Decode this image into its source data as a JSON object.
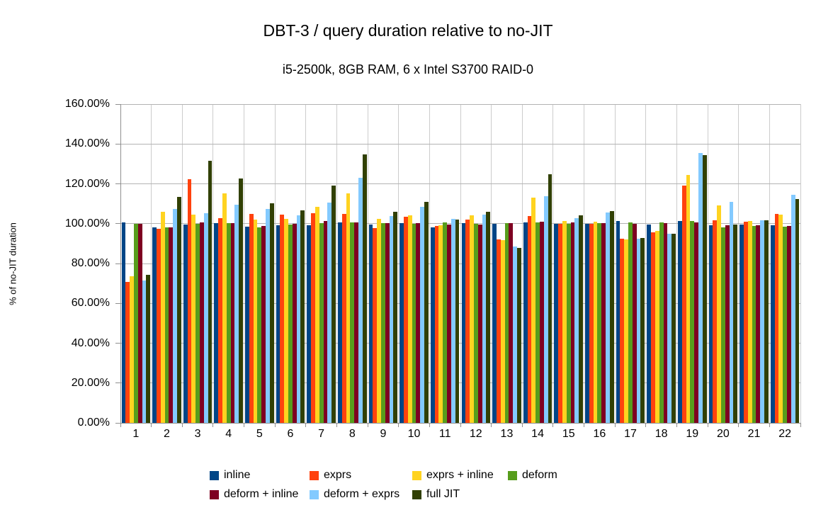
{
  "title": "DBT-3 / query duration relative to no-JIT",
  "subtitle": "i5-2500k, 8GB RAM, 6 x Intel S3700 RAID-0",
  "y_axis": {
    "title": "% of no-JIT duration",
    "tick_labels": [
      "0.00%",
      "20.00%",
      "40.00%",
      "60.00%",
      "80.00%",
      "100.00%",
      "120.00%",
      "140.00%",
      "160.00%"
    ]
  },
  "chart_data": {
    "type": "bar",
    "title": "DBT-3 / query duration relative to no-JIT",
    "subtitle": "i5-2500k, 8GB RAM, 6 x Intel S3700 RAID-0",
    "xlabel": "",
    "ylabel": "% of no-JIT duration",
    "ylim": [
      0,
      160
    ],
    "y_tick_step": 20,
    "unit": "%",
    "grid": true,
    "legend_position": "bottom",
    "categories": [
      "1",
      "2",
      "3",
      "4",
      "5",
      "6",
      "7",
      "8",
      "9",
      "10",
      "11",
      "12",
      "13",
      "14",
      "15",
      "16",
      "17",
      "18",
      "19",
      "20",
      "21",
      "22"
    ],
    "series": [
      {
        "name": "inline",
        "color": "#004586",
        "values": [
          100.6,
          98.2,
          99.6,
          100.3,
          98.5,
          99.1,
          99.3,
          100.5,
          99.7,
          100.4,
          98.2,
          100.4,
          99.9,
          100.5,
          100.0,
          99.9,
          101.2,
          99.7,
          101.2,
          99.3,
          99.6,
          99.2
        ]
      },
      {
        "name": "exprs",
        "color": "#FF420E",
        "values": [
          70.6,
          97.3,
          122.4,
          102.8,
          104.9,
          104.5,
          105.2,
          104.8,
          97.8,
          103.6,
          98.7,
          102.0,
          92.0,
          103.7,
          100.0,
          99.9,
          92.3,
          95.7,
          119.2,
          101.6,
          101.1,
          105.0
        ]
      },
      {
        "name": "exprs + inline",
        "color": "#FFD320",
        "values": [
          73.6,
          106.0,
          104.4,
          115.3,
          102.0,
          102.5,
          108.6,
          115.1,
          102.3,
          104.1,
          99.1,
          104.2,
          91.8,
          113.1,
          101.2,
          100.9,
          92.0,
          96.5,
          124.6,
          109.3,
          101.4,
          104.4
        ]
      },
      {
        "name": "deform",
        "color": "#579D1C",
        "values": [
          99.8,
          98.1,
          100.0,
          100.1,
          98.1,
          99.4,
          100.3,
          100.5,
          100.1,
          99.9,
          100.6,
          100.0,
          100.1,
          100.5,
          100.0,
          100.1,
          100.7,
          100.5,
          101.3,
          98.2,
          98.8,
          98.5
        ]
      },
      {
        "name": "deform + inline",
        "color": "#7E0021",
        "values": [
          99.9,
          98.0,
          100.5,
          100.3,
          98.7,
          99.9,
          101.2,
          100.5,
          100.1,
          100.2,
          99.4,
          99.7,
          100.4,
          100.9,
          100.6,
          100.4,
          99.9,
          100.3,
          100.6,
          99.2,
          99.2,
          99.0
        ]
      },
      {
        "name": "deform + exprs",
        "color": "#83CAFF",
        "values": [
          71.5,
          107.4,
          105.2,
          109.5,
          107.3,
          104.2,
          110.7,
          123.0,
          103.9,
          108.3,
          102.5,
          104.4,
          88.7,
          113.9,
          102.9,
          105.6,
          92.3,
          94.9,
          135.4,
          110.9,
          101.8,
          114.4
        ]
      },
      {
        "name": "full JIT",
        "color": "#314004",
        "values": [
          74.2,
          113.3,
          131.7,
          122.7,
          110.3,
          106.6,
          119.2,
          134.7,
          106.0,
          110.9,
          102.0,
          106.0,
          87.8,
          124.8,
          104.2,
          106.3,
          92.8,
          95.0,
          134.4,
          99.7,
          101.6,
          112.5
        ]
      }
    ]
  }
}
